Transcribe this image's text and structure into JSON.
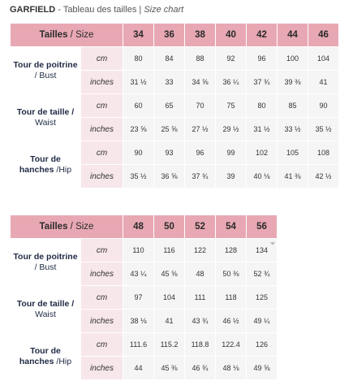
{
  "heading": {
    "brand": "GARFIELD",
    "sep": " - ",
    "subtitle": "Tableau des tailles",
    "pipe": " | ",
    "subtitle_en": "Size chart"
  },
  "table1": {
    "header_label": "Tailles",
    "header_label_sep": " / ",
    "header_label_en": "Size",
    "sizes": [
      "34",
      "36",
      "38",
      "40",
      "42",
      "44",
      "46"
    ],
    "rows": [
      {
        "name_fr": "Tour de poitrine",
        "name_en": "/ Bust",
        "cm": [
          "80",
          "84",
          "88",
          "92",
          "96",
          "100",
          "104"
        ],
        "inches": [
          "31 ½",
          "33",
          "34 ⅝",
          "36 ¼",
          "37 ¾",
          "39 ⅜",
          "41"
        ]
      },
      {
        "name_fr": "Tour de taille /",
        "name_en": "Waist",
        "cm": [
          "60",
          "65",
          "70",
          "75",
          "80",
          "85",
          "90"
        ],
        "inches": [
          "23 ⅝",
          "25 ⅝",
          "27 ½",
          "29 ½",
          "31 ½",
          "33 ½",
          "35 ½"
        ]
      },
      {
        "name_fr": "Tour de",
        "name_fr2": "hanches",
        "name_en": "/Hip",
        "cm": [
          "90",
          "93",
          "96",
          "99",
          "102",
          "105",
          "108"
        ],
        "inches": [
          "35 ½",
          "36 ⅝",
          "37 ¾",
          "39",
          "40 ⅛",
          "41 ⅜",
          "42 ½"
        ]
      }
    ]
  },
  "table2": {
    "header_label": "Tailles",
    "header_label_sep": " / ",
    "header_label_en": "Size",
    "sizes": [
      "48",
      "50",
      "52",
      "54",
      "56"
    ],
    "rows": [
      {
        "name_fr": "Tour de poitrine",
        "name_en": "/ Bust",
        "cm": [
          "110",
          "116",
          "122",
          "128",
          "134"
        ],
        "inches": [
          "43 ¼",
          "45 ⅝",
          "48",
          "50 ⅜",
          "52 ¾"
        ]
      },
      {
        "name_fr": "Tour de taille /",
        "name_en": "Waist",
        "cm": [
          "97",
          "104",
          "111",
          "118",
          "125"
        ],
        "inches": [
          "38 ⅛",
          "41",
          "43 ¾",
          "46 ½",
          "49 ¼"
        ]
      },
      {
        "name_fr": "Tour de",
        "name_fr2": "hanches",
        "name_en": "/Hip",
        "cm": [
          "111.6",
          "115.2",
          "118.8",
          "122.4",
          "126"
        ],
        "inches": [
          "44",
          "45 ⅜",
          "46 ¾",
          "48 ⅛",
          "49 ⅝"
        ]
      }
    ]
  },
  "units": {
    "cm": "cm",
    "inches": "inches"
  },
  "colors": {
    "header_bg": "#e8a8b3",
    "unit_bg": "#f7e6ea",
    "cell_bg": "#f5f5f5"
  }
}
